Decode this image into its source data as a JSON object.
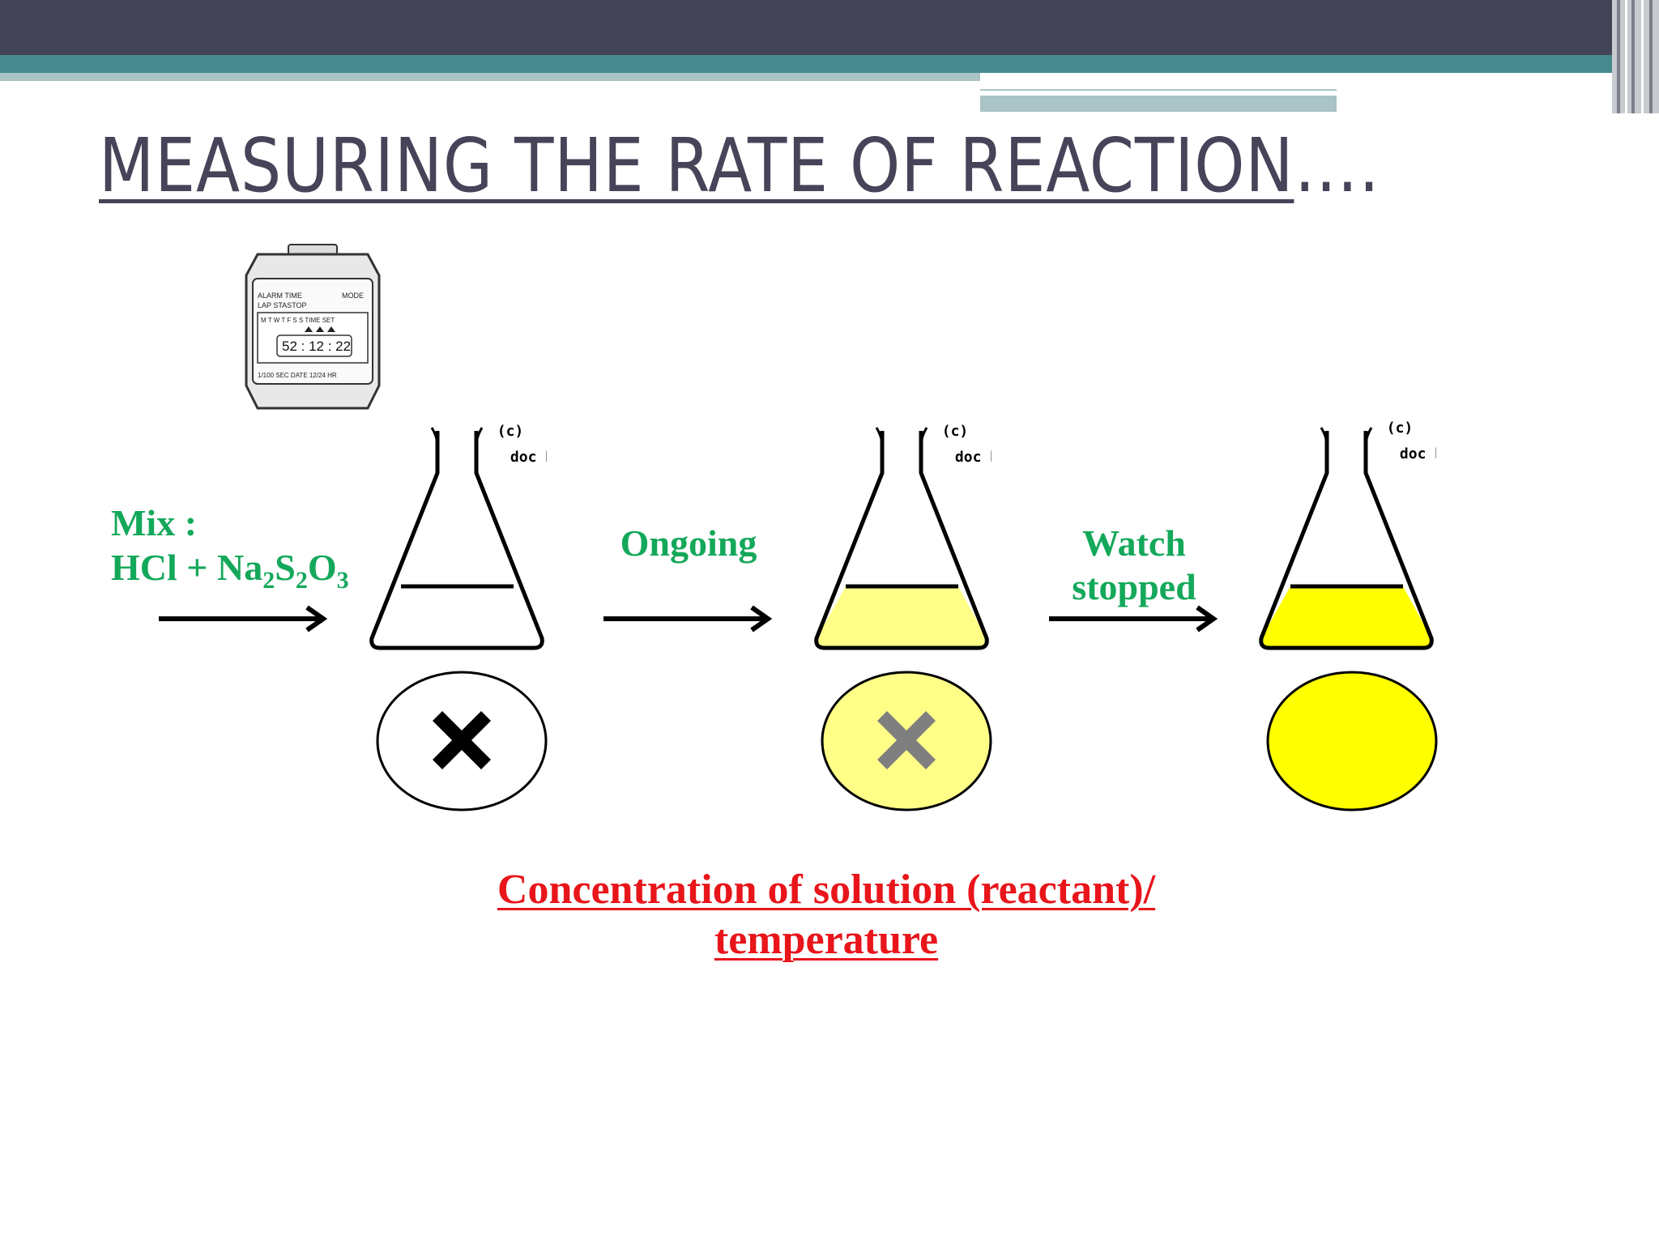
{
  "slide": {
    "title_underlined": "MEASURING THE RATE OF REACTION",
    "title_trailing": "….",
    "theme_colors": {
      "dark_band": "#444459",
      "teal": "#468a8e",
      "light_teal": "#a9c3c6",
      "title": "#454459"
    }
  },
  "stopwatch": {
    "icon": "stopwatch-icon",
    "row1_left": "ALARM  TIME",
    "row1_right": "MODE",
    "row2": "LAP     STASTOP",
    "row3": "M T W T F S S  TIME SET",
    "display": "52 : 12 : 22",
    "row4": "1/100 SEC  DATE  12/24 HR"
  },
  "diagram": {
    "mix_label": "Mix :",
    "reaction_lhs": "HCl + Na",
    "sub1": "2",
    "s_symbol": "S",
    "sub2": "2",
    "o_symbol": "O",
    "sub3": "3",
    "step2_label": "Ongoing",
    "step3_label_line1": "Watch",
    "step3_label_line2": "stopped",
    "flask_copyright": "(c)",
    "flask_credit": "doc b",
    "label_color": "#14a85a",
    "liquid_colors": [
      "#ffffff",
      "#ffff88",
      "#ffff00"
    ],
    "cross_colors": [
      "#000000",
      "#7f7f7f"
    ]
  },
  "caption": {
    "line1": "Concentration of solution (reactant)/",
    "line2": "temperature",
    "color": "#e8151b"
  }
}
